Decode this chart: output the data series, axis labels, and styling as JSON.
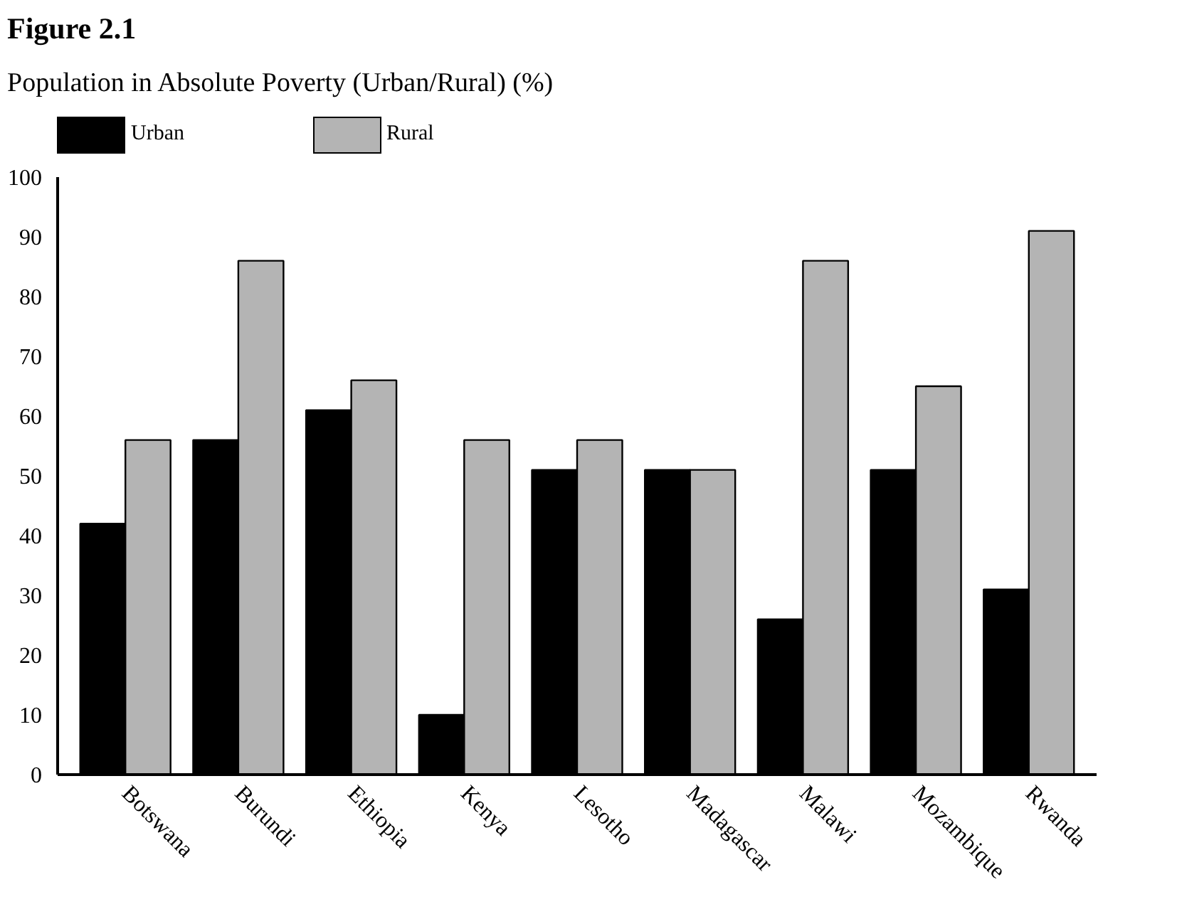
{
  "chart_data": {
    "type": "bar",
    "title": "Figure 2.1",
    "subtitle": "Population in Absolute Poverty (Urban/Rural) (%)",
    "categories": [
      "Botswana",
      "Burundi",
      "Ethiopia",
      "Kenya",
      "Lesotho",
      "Madagascar",
      "Malawi",
      "Mozambique",
      "Rwanda"
    ],
    "series": [
      {
        "name": "Urban",
        "color": "#000000",
        "values": [
          42,
          56,
          61,
          10,
          51,
          51,
          26,
          51,
          31
        ]
      },
      {
        "name": "Rural",
        "color": "#b4b4b4",
        "values": [
          56,
          86,
          66,
          56,
          56,
          51,
          86,
          65,
          91
        ]
      }
    ],
    "ylim": [
      0,
      100
    ],
    "yticks": [
      0,
      10,
      20,
      30,
      40,
      50,
      60,
      70,
      80,
      90,
      100
    ],
    "grid": false,
    "legend": "top left"
  }
}
